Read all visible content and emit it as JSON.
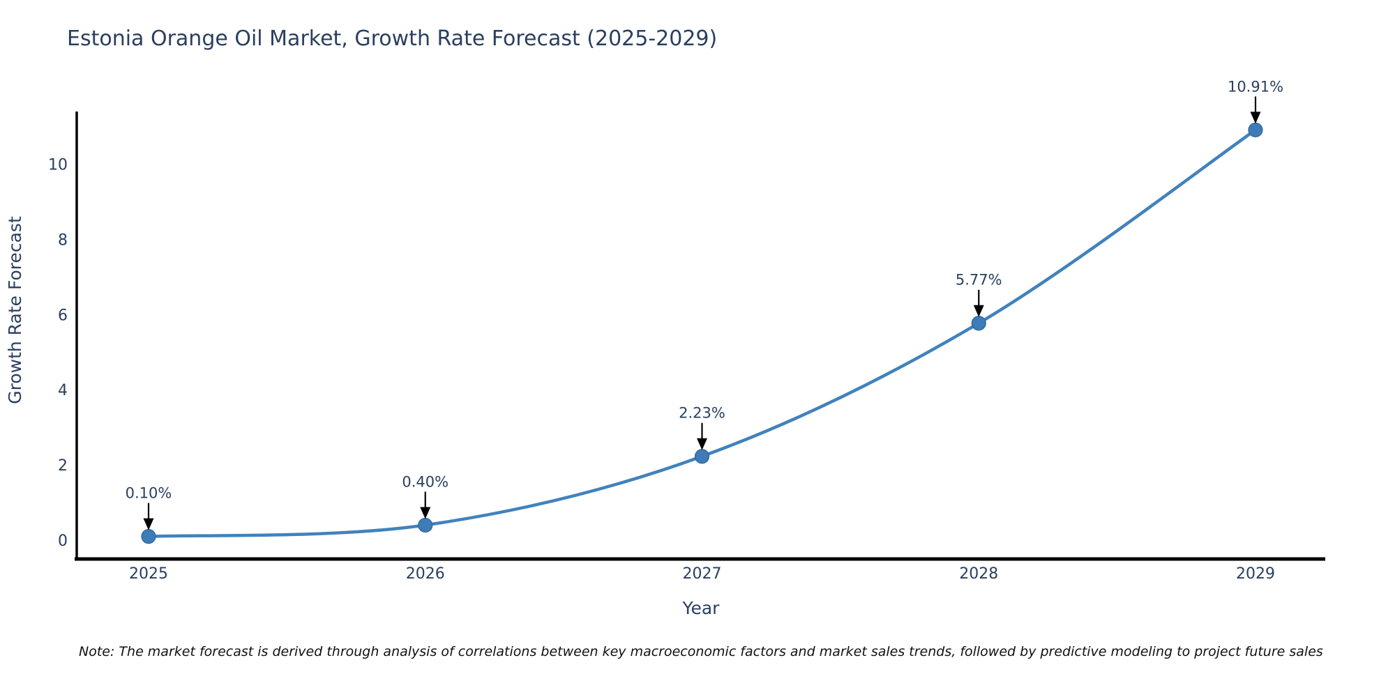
{
  "chart_data": {
    "type": "line",
    "title": "Estonia Orange Oil Market, Growth Rate Forecast (2025-2029)",
    "xlabel": "Year",
    "ylabel": "Growth Rate Forecast",
    "categories": [
      "2025",
      "2026",
      "2027",
      "2028",
      "2029"
    ],
    "series": [
      {
        "name": "Growth Rate Forecast",
        "values": [
          0.1,
          0.4,
          2.23,
          5.77,
          10.91
        ],
        "labels": [
          "0.10%",
          "0.40%",
          "2.23%",
          "5.77%",
          "10.91%"
        ]
      }
    ],
    "y_ticks": [
      0,
      2,
      4,
      6,
      8,
      10
    ],
    "ylim": [
      -0.5,
      11.4
    ],
    "grid": false,
    "legend_position": "none",
    "colors": {
      "line": "#4182bd",
      "marker": "#3d7cb8",
      "marker_edge": "#2f6496",
      "axis": "#000000",
      "text": "#2a3f5f",
      "arrow": "#000000"
    }
  },
  "note": "Note: The market forecast is derived through analysis of correlations between key macroeconomic factors and market sales trends, followed by predictive modeling to project future sales"
}
